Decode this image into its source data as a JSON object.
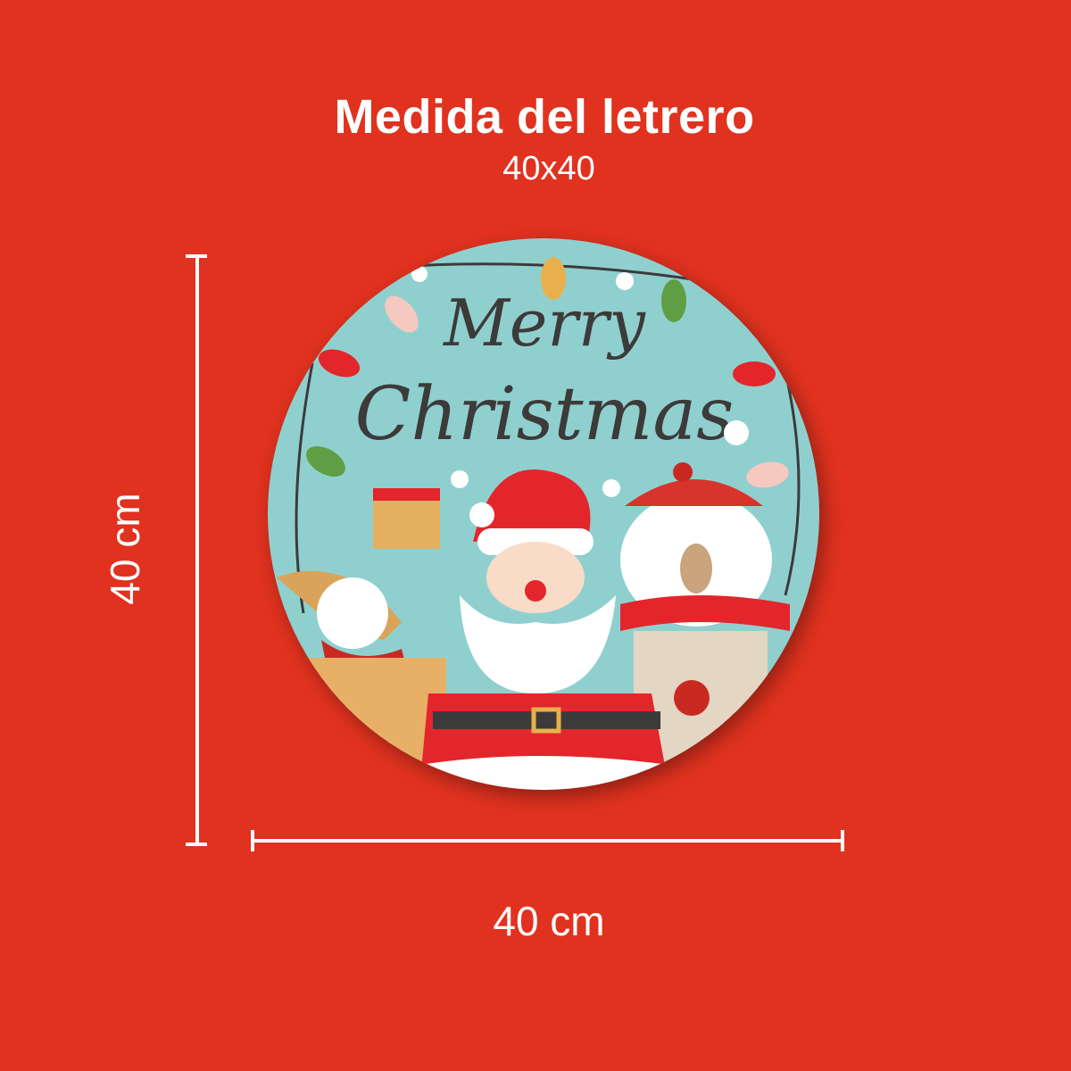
{
  "header": {
    "title": "Medida del letrero",
    "subtitle": "40x40"
  },
  "dimensions": {
    "height_label": "40 cm",
    "width_label": "40 cm"
  },
  "sign": {
    "artwork_lettering": "Merry Christmas",
    "colors": {
      "background": "#e0321f",
      "sign_bg": "#8fd0cf",
      "santa_red": "#e3262b",
      "lettering": "#3d3a3a"
    }
  }
}
